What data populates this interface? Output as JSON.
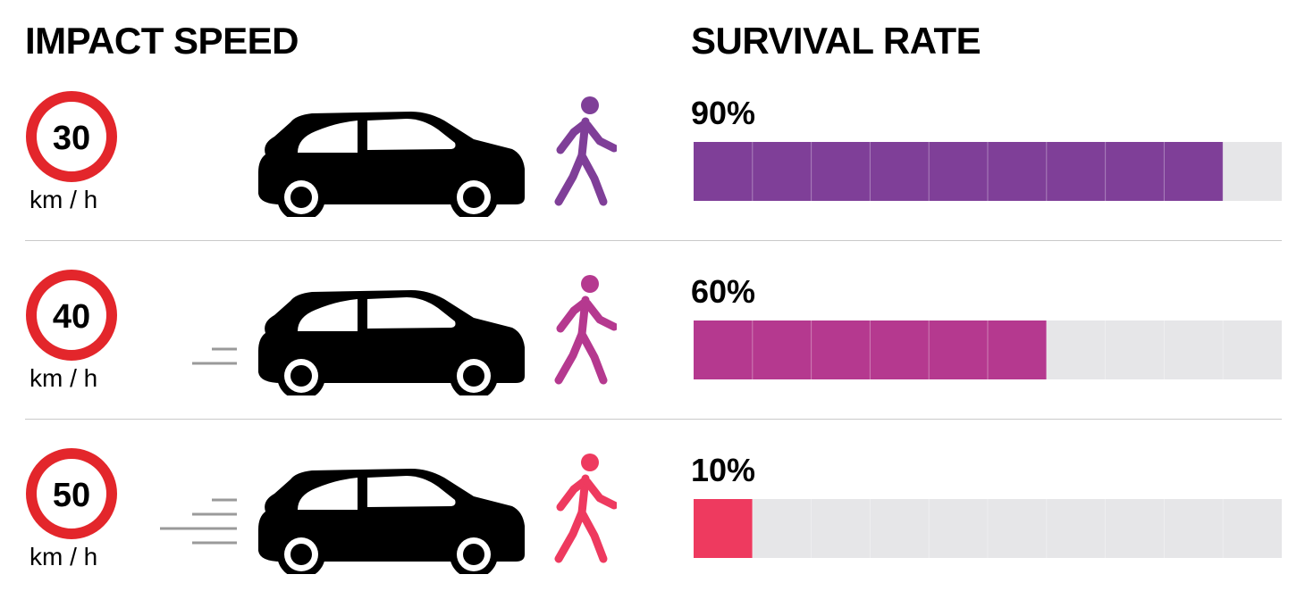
{
  "header": {
    "left_title": "IMPACT SPEED",
    "right_title": "SURVIVAL RATE"
  },
  "chart_data": {
    "type": "bar",
    "orientation": "horizontal",
    "categories": [
      "30",
      "40",
      "50"
    ],
    "values": [
      90,
      60,
      10
    ],
    "value_labels": [
      "90%",
      "60%",
      "10%"
    ],
    "xlim": [
      0,
      100
    ],
    "segments": 10,
    "unit": "km / h",
    "series_colors": [
      "#7f3f98",
      "#b5398f",
      "#ee3a5f"
    ],
    "track_color": "#e6e6e8",
    "speed_lines": [
      0,
      2,
      4
    ]
  },
  "colors": {
    "sign_border": "#e3262b",
    "car": "#000000",
    "divider": "#c9c9c9",
    "speed_line": "#9a9a9a"
  },
  "icons": {
    "sign": "speed-limit-sign-icon",
    "car": "car-icon",
    "walker": "pedestrian-icon",
    "motion": "speed-lines-icon"
  }
}
